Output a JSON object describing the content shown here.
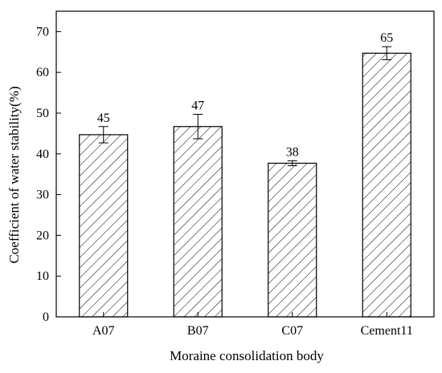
{
  "chart_data": {
    "type": "bar",
    "categories": [
      "A07",
      "B07",
      "C07",
      "Cement11"
    ],
    "values": [
      44.7,
      46.7,
      37.7,
      64.7
    ],
    "errors": [
      2.0,
      3.0,
      0.6,
      1.6
    ],
    "data_labels": [
      "45",
      "47",
      "38",
      "65"
    ],
    "xlabel": "Moraine consolidation body",
    "ylabel": "Coefficient of water stability(%)",
    "ylim": [
      0,
      75
    ],
    "yticks": [
      0,
      10,
      20,
      30,
      40,
      50,
      60,
      70
    ],
    "grid": false,
    "bar_fill": "hatched",
    "bar_color": "#000000"
  }
}
